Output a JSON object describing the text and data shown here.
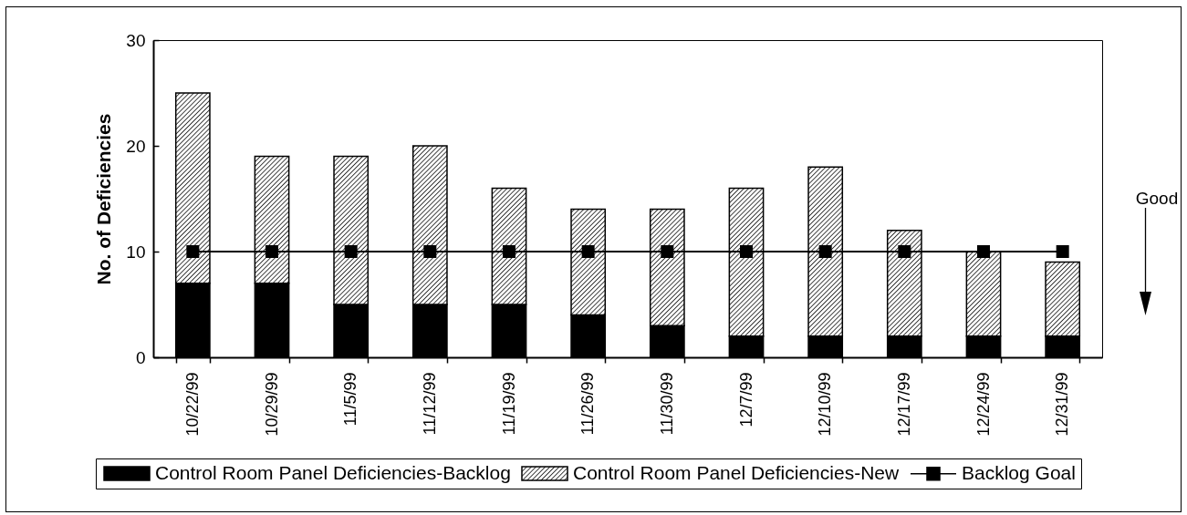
{
  "chart_data": {
    "type": "bar",
    "stacked": true,
    "categories": [
      "10/22/99",
      "10/29/99",
      "11/5/99",
      "11/12/99",
      "11/19/99",
      "11/26/99",
      "11/30/99",
      "12/7/99",
      "12/10/99",
      "12/17/99",
      "12/24/99",
      "12/31/99"
    ],
    "series": [
      {
        "name": "Control Room Panel Deficiencies-Backlog",
        "color": "#000000",
        "values": [
          7,
          7,
          5,
          5,
          5,
          4,
          3,
          2,
          2,
          2,
          2,
          2
        ]
      },
      {
        "name": "Control Room Panel Deficiencies-New",
        "color": "#000000",
        "values": [
          18,
          12,
          14,
          15,
          11,
          10,
          11,
          14,
          16,
          10,
          8,
          7
        ]
      },
      {
        "name": "Backlog Goal",
        "type": "line",
        "color": "#000000",
        "values": [
          10,
          10,
          10,
          10,
          10,
          10,
          10,
          10,
          10,
          10,
          10,
          10
        ]
      }
    ],
    "ylabel": "No. of Deficiencies",
    "ylim": [
      0,
      30
    ],
    "yticks": [
      0,
      10,
      20,
      30
    ],
    "grid": false,
    "legend": "bottom",
    "marker": "square",
    "line_style": "solid",
    "annotations": [
      "Good"
    ]
  }
}
